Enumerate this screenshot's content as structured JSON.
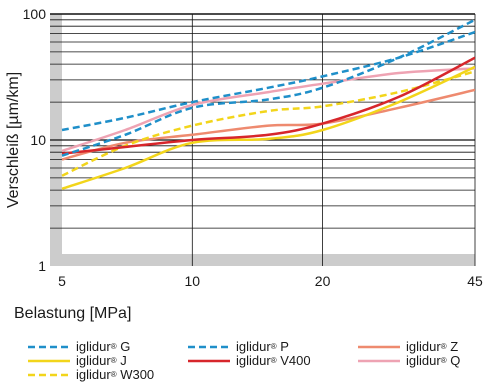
{
  "chart_data": {
    "type": "line",
    "title": "",
    "xlabel": "Belastung [MPa]",
    "ylabel": "Verschleiß [µm/km]",
    "x_scale": "log",
    "y_scale": "log",
    "xlim": [
      5,
      45
    ],
    "ylim": [
      1,
      100
    ],
    "x_ticks": [
      {
        "value": 5,
        "label": "5"
      },
      {
        "value": 10,
        "label": "10"
      },
      {
        "value": 20,
        "label": "20"
      },
      {
        "value": 45,
        "label": "45"
      }
    ],
    "y_ticks": [
      {
        "value": 1,
        "label": "1"
      },
      {
        "value": 10,
        "label": "10"
      },
      {
        "value": 100,
        "label": "100"
      }
    ],
    "grid": true,
    "legend_position": "bottom",
    "series": [
      {
        "name": "iglidur G",
        "color": "#1f8fc9",
        "style": "dashed",
        "x": [
          5,
          7,
          10,
          15,
          20,
          30,
          45
        ],
        "y": [
          12,
          15,
          20,
          26,
          32,
          45,
          72
        ]
      },
      {
        "name": "iglidur J",
        "color": "#f2d51b",
        "style": "solid",
        "x": [
          5,
          7,
          10,
          15,
          20,
          30,
          45
        ],
        "y": [
          4.1,
          6,
          9.5,
          10.2,
          12,
          20,
          38
        ]
      },
      {
        "name": "iglidur W300",
        "color": "#f2d51b",
        "style": "dashed",
        "x": [
          5,
          7,
          10,
          15,
          20,
          30,
          45
        ],
        "y": [
          5.2,
          9,
          13,
          17,
          18.5,
          24,
          35
        ]
      },
      {
        "name": "iglidur P",
        "color": "#1f8fc9",
        "style": "dashed",
        "x": [
          5,
          7,
          10,
          15,
          20,
          30,
          45
        ],
        "y": [
          7.5,
          11,
          18,
          21,
          26,
          45,
          90
        ]
      },
      {
        "name": "iglidur V400",
        "color": "#d7262b",
        "style": "solid",
        "x": [
          5,
          7,
          10,
          15,
          20,
          30,
          45
        ],
        "y": [
          7.8,
          8.8,
          10,
          11,
          13.5,
          22,
          45
        ]
      },
      {
        "name": "iglidur Z",
        "color": "#ee8a6f",
        "style": "solid",
        "x": [
          5,
          7,
          10,
          15,
          20,
          30,
          45
        ],
        "y": [
          7,
          9.5,
          11,
          13,
          13.5,
          18,
          25
        ]
      },
      {
        "name": "iglidur Q",
        "color": "#eea3b3",
        "style": "solid",
        "x": [
          5,
          7,
          10,
          15,
          20,
          30,
          45
        ],
        "y": [
          8.2,
          12,
          19,
          24,
          28,
          34,
          37
        ]
      }
    ]
  },
  "legend": {
    "items": [
      {
        "brand": "iglidur",
        "mark": "®",
        "grade": "G"
      },
      {
        "brand": "iglidur",
        "mark": "®",
        "grade": "J"
      },
      {
        "brand": "iglidur",
        "mark": "®",
        "grade": "W300"
      },
      {
        "brand": "iglidur",
        "mark": "®",
        "grade": "P"
      },
      {
        "brand": "iglidur",
        "mark": "®",
        "grade": "V400"
      },
      {
        "brand": "iglidur",
        "mark": "®",
        "grade": "Z"
      },
      {
        "brand": "iglidur",
        "mark": "®",
        "grade": "Q"
      }
    ]
  }
}
